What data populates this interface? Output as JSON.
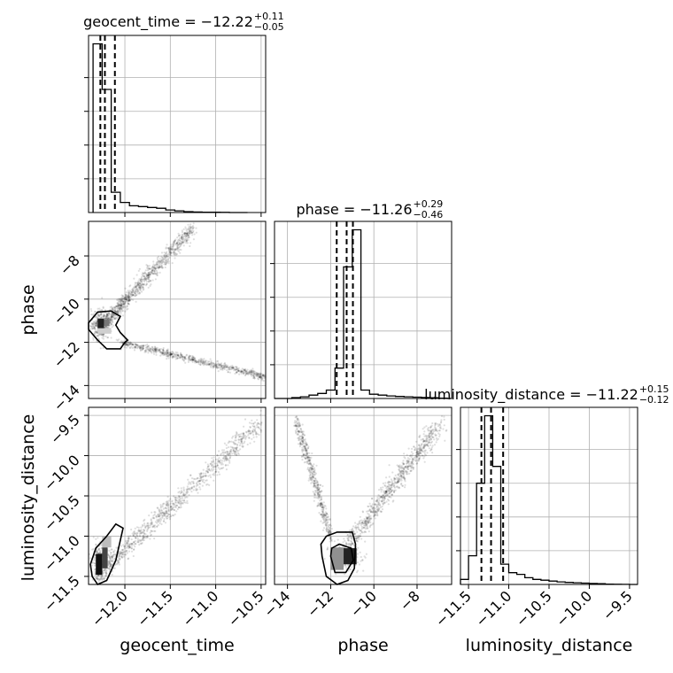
{
  "chart_data": {
    "type": "scatter",
    "parameters": [
      {
        "key": "geocent_time",
        "label": "geocent_time",
        "title": "geocent_time = −12.22",
        "title_plus": "+0.11",
        "title_minus": "−0.05",
        "range": [
          -12.4,
          -10.45
        ],
        "ticks": [
          -12.0,
          -11.5,
          -11.0,
          -10.5
        ],
        "tick_labels": [
          "−12.0",
          "−11.5",
          "−11.0",
          "−10.5"
        ],
        "quantiles": [
          -12.27,
          -12.22,
          -12.11
        ],
        "hist_edges": [
          -12.35,
          -12.25,
          -12.15,
          -12.05,
          -11.95,
          -11.85,
          -11.75,
          -11.65,
          -11.55,
          -11.45,
          -11.35,
          -11.25,
          -11.15,
          -11.05,
          -10.95,
          -10.85,
          -10.75,
          -10.65
        ],
        "hist_counts": [
          100,
          73,
          12,
          6,
          4,
          3.5,
          3,
          2.5,
          1.5,
          1,
          0.5,
          0.3,
          0.2,
          0.15,
          0.1,
          0,
          0
        ],
        "hist_yticks": [
          20,
          40,
          60,
          80
        ]
      },
      {
        "key": "phase",
        "label": "phase",
        "title": "phase = −11.26",
        "title_plus": "+0.29",
        "title_minus": "−0.46",
        "range": [
          -14.6,
          -6.4
        ],
        "ticks": [
          -14,
          -12,
          -10,
          -8
        ],
        "tick_labels": [
          "−14",
          "−12",
          "−10",
          "−8"
        ],
        "quantiles": [
          -11.72,
          -11.26,
          -10.97
        ],
        "hist_edges": [
          -14.6,
          -14.2,
          -13.8,
          -13.4,
          -13.0,
          -12.6,
          -12.2,
          -11.8,
          -11.4,
          -11.0,
          -10.6,
          -10.2,
          -9.8,
          -9.4,
          -9.0,
          -8.6,
          -8.2,
          -7.8,
          -7.4,
          -7.0,
          -6.6,
          -6.4
        ],
        "hist_counts": [
          0,
          0,
          0.5,
          1,
          2,
          3,
          5,
          18,
          78,
          100,
          5,
          2.5,
          2,
          1.5,
          1.2,
          1,
          0.8,
          0.6,
          0.4,
          0.2,
          0
        ],
        "hist_yticks": [
          20,
          40,
          60,
          80
        ]
      },
      {
        "key": "luminosity_distance",
        "label": "luminosity_distance",
        "title": "luminosity_distance = −11.22",
        "title_plus": "+0.15",
        "title_minus": "−0.12",
        "range": [
          -11.6,
          -9.4
        ],
        "ticks": [
          -11.5,
          -11.0,
          -10.5,
          -10.0,
          -9.5
        ],
        "tick_labels": [
          "−11.5",
          "−11.0",
          "−10.5",
          "−10.0",
          "−9.5"
        ],
        "quantiles": [
          -11.34,
          -11.22,
          -11.07
        ],
        "hist_edges": [
          -11.6,
          -11.5,
          -11.4,
          -11.3,
          -11.2,
          -11.1,
          -11.0,
          -10.9,
          -10.8,
          -10.7,
          -10.6,
          -10.5,
          -10.4,
          -10.3,
          -10.2,
          -10.1,
          -10.0,
          -9.9,
          -9.8,
          -9.7,
          -9.6,
          -9.5,
          -9.4
        ],
        "hist_counts": [
          3,
          17,
          60,
          100,
          70,
          12,
          7,
          6,
          4,
          3,
          2.5,
          2,
          1.5,
          1.2,
          1,
          0.8,
          0.6,
          0.4,
          0.2,
          0.1,
          0.05,
          0
        ],
        "hist_yticks": [
          20,
          40,
          60,
          80
        ]
      }
    ],
    "grid": true,
    "colors": {
      "line": "#000000",
      "grid": "#b0b0b0",
      "points": "#000000"
    }
  }
}
